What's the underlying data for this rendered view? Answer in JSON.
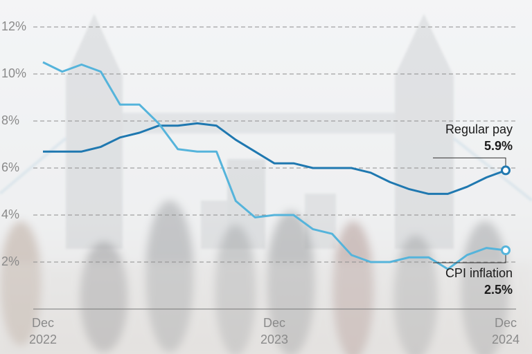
{
  "chart_data": {
    "type": "line",
    "x": [
      "Dec 2022",
      null,
      null,
      null,
      null,
      null,
      null,
      null,
      null,
      null,
      null,
      null,
      "Dec 2023",
      null,
      null,
      null,
      null,
      null,
      null,
      null,
      null,
      null,
      null,
      null,
      "Dec 2024"
    ],
    "ylim": [
      0,
      13
    ],
    "yticks": [
      {
        "value": 2,
        "label": "2%"
      },
      {
        "value": 4,
        "label": "4%"
      },
      {
        "value": 6,
        "label": "6%"
      },
      {
        "value": 8,
        "label": "8%"
      },
      {
        "value": 10,
        "label": "10%"
      },
      {
        "value": 12,
        "label": "12%"
      }
    ],
    "grid": true,
    "series": [
      {
        "name": "Regular pay",
        "color": "#1f78b0",
        "values": [
          6.7,
          6.7,
          6.7,
          6.9,
          7.3,
          7.5,
          7.8,
          7.8,
          7.9,
          7.8,
          7.2,
          6.7,
          6.2,
          6.2,
          6.0,
          6.0,
          6.0,
          5.8,
          5.4,
          5.1,
          4.9,
          4.9,
          5.2,
          5.6,
          5.9
        ],
        "value_labels": [
          null,
          null,
          null,
          null,
          null,
          null,
          null,
          null,
          null,
          null,
          null,
          null,
          null,
          null,
          null,
          null,
          null,
          null,
          null,
          null,
          null,
          null,
          null,
          null,
          "5.9%"
        ]
      },
      {
        "name": "CPI inflation",
        "color": "#55b4db",
        "values": [
          10.5,
          10.1,
          10.4,
          10.1,
          8.7,
          8.7,
          7.9,
          6.8,
          6.7,
          6.7,
          4.6,
          3.9,
          4.0,
          4.0,
          3.4,
          3.2,
          2.3,
          2.0,
          2.0,
          2.2,
          2.2,
          1.7,
          2.3,
          2.6,
          2.5
        ],
        "value_labels": [
          null,
          null,
          null,
          null,
          null,
          null,
          null,
          null,
          null,
          null,
          null,
          null,
          null,
          null,
          null,
          null,
          null,
          null,
          null,
          null,
          null,
          null,
          null,
          null,
          "2.5%"
        ]
      }
    ]
  }
}
